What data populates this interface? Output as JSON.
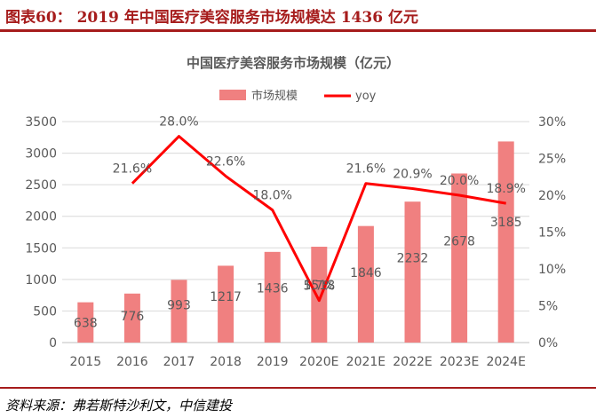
{
  "figure_title": "图表60： 2019 年中国医疗美容服务市场规模达 1436 亿元",
  "source": "资料来源：弗若斯特沙利文，中信建投",
  "colors": {
    "accent": "#a61c1c",
    "bar": "#f08080",
    "line": "#ff0000",
    "text": "#595959",
    "grid": "#d9d9d9"
  },
  "chart_data": {
    "type": "bar",
    "title": "中国医疗美容服务市场规模（亿元）",
    "categories": [
      "2015",
      "2016",
      "2017",
      "2018",
      "2019",
      "2020E",
      "2021E",
      "2022E",
      "2023E",
      "2024E"
    ],
    "series": [
      {
        "name": "市场规模",
        "type": "bar",
        "axis": "left",
        "values": [
          638,
          776,
          993,
          1217,
          1436,
          1518,
          1846,
          2232,
          2678,
          3185
        ]
      },
      {
        "name": "yoy",
        "type": "line",
        "axis": "right",
        "values": [
          null,
          21.6,
          28.0,
          22.6,
          18.0,
          5.7,
          21.6,
          20.9,
          20.0,
          18.9
        ]
      }
    ],
    "bar_labels": [
      "638",
      "776",
      "993",
      "1217",
      "1436",
      "1518",
      "1846",
      "2232",
      "2678",
      "3185"
    ],
    "line_labels": [
      null,
      "21.6%",
      "28.0%",
      "22.6%",
      "18.0%",
      "5.7%",
      "21.6%",
      "20.9%",
      "20.0%",
      "18.9%"
    ],
    "ylim": [
      0,
      3500
    ],
    "yticks": [
      "0",
      "500",
      "1000",
      "1500",
      "2000",
      "2500",
      "3000",
      "3500"
    ],
    "y2lim": [
      0,
      30
    ],
    "y2ticks": [
      "0%",
      "5%",
      "10%",
      "15%",
      "20%",
      "25%",
      "30%"
    ],
    "legend_position": "top-center",
    "grid": true
  }
}
